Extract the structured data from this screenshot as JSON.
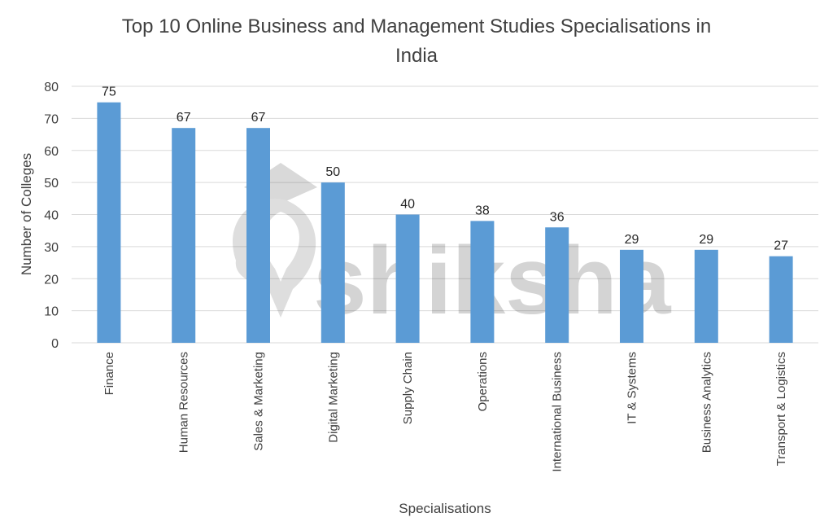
{
  "chart_data": {
    "type": "bar",
    "title_line1": "Top 10 Online Business and Management Studies Specialisations in",
    "title_line2": "India",
    "xlabel": "Specialisations",
    "ylabel": "Number of Colleges",
    "categories": [
      "Finance",
      "Human Resources",
      "Sales & Marketing",
      "Digital Marketing",
      "Supply Chain",
      "Operations",
      "International Business",
      "IT & Systems",
      "Business Analytics",
      "Transport & Logistics"
    ],
    "values": [
      75,
      67,
      67,
      50,
      40,
      38,
      36,
      29,
      29,
      27
    ],
    "ylim": [
      0,
      80
    ],
    "yticks": [
      0,
      10,
      20,
      30,
      40,
      50,
      60,
      70,
      80
    ],
    "grid": true,
    "bar_color": "#5b9bd5",
    "watermark_text": "shiksha"
  }
}
